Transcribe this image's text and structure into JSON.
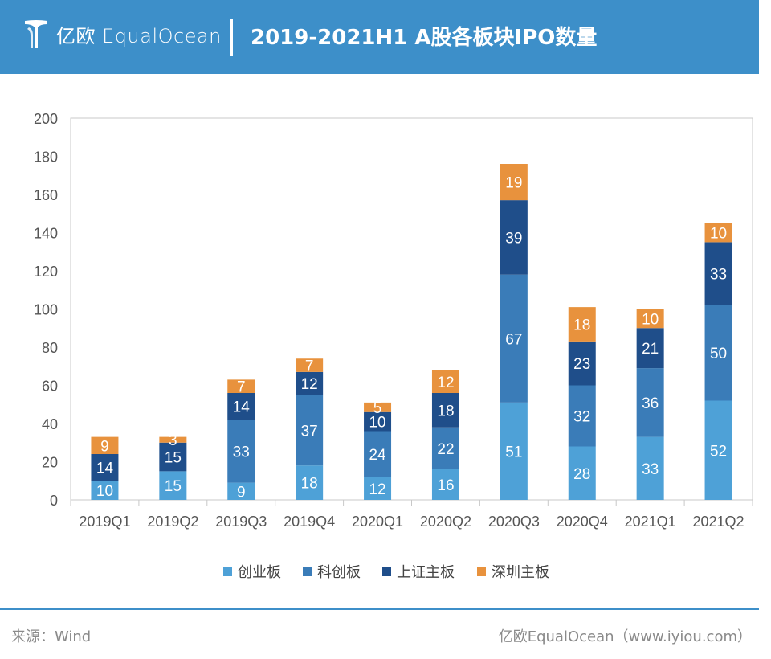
{
  "header": {
    "logo_text": "亿欧 EqualOcean",
    "title": "2019-2021H1 A股各板块IPO数量"
  },
  "footer": {
    "source": "来源：Wind",
    "credit": "亿欧EqualOcean（www.iyiou.com）"
  },
  "colors": {
    "header_bg": "#3d8fc9",
    "创业板": "#4ea1d7",
    "科创板": "#3a7cb8",
    "上证主板": "#1f4e8a",
    "深圳主板": "#e8923d"
  },
  "chart_data": {
    "type": "bar",
    "stacked": true,
    "categories": [
      "2019Q1",
      "2019Q2",
      "2019Q3",
      "2019Q4",
      "2020Q1",
      "2020Q2",
      "2020Q3",
      "2020Q4",
      "2021Q1",
      "2021Q2"
    ],
    "series": [
      {
        "name": "创业板",
        "color": "#4ea1d7",
        "values": [
          10,
          15,
          9,
          18,
          12,
          16,
          51,
          28,
          33,
          52
        ]
      },
      {
        "name": "科创板",
        "color": "#3a7cb8",
        "values": [
          0,
          0,
          33,
          37,
          24,
          22,
          67,
          32,
          36,
          50
        ]
      },
      {
        "name": "上证主板",
        "color": "#1f4e8a",
        "values": [
          14,
          15,
          14,
          12,
          10,
          18,
          39,
          23,
          21,
          33
        ]
      },
      {
        "name": "深圳主板",
        "color": "#e8923d",
        "values": [
          9,
          3,
          7,
          7,
          5,
          12,
          19,
          18,
          10,
          10
        ]
      }
    ],
    "ylim": [
      0,
      200
    ],
    "yticks": [
      0,
      20,
      40,
      60,
      80,
      100,
      120,
      140,
      160,
      180,
      200
    ],
    "grid": false,
    "legend_position": "bottom"
  }
}
